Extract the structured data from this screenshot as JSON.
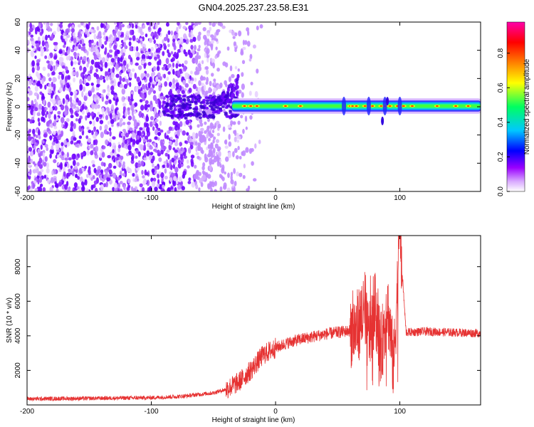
{
  "chart_data": [
    {
      "type": "heatmap",
      "title": "GN04.2025.237.23.58.E31",
      "xlabel": "Height of straight line (km)",
      "ylabel": "Frequency (Hz)",
      "xlim": [
        -200,
        165
      ],
      "ylim": [
        -60,
        60
      ],
      "xticks": [
        {
          "value": -200,
          "label": "-200"
        },
        {
          "value": -100,
          "label": "-100"
        },
        {
          "value": 0,
          "label": "0"
        },
        {
          "value": 100,
          "label": "100"
        }
      ],
      "yticks": [
        {
          "value": -60,
          "label": "-60"
        },
        {
          "value": -40,
          "label": "-40"
        },
        {
          "value": -20,
          "label": "-20"
        },
        {
          "value": 0,
          "label": "0"
        },
        {
          "value": 20,
          "label": "20"
        },
        {
          "value": 40,
          "label": "40"
        },
        {
          "value": 60,
          "label": "60"
        }
      ],
      "colorbar": {
        "label": "Normalized spectral amplitude",
        "range": [
          0,
          0.98
        ],
        "ticks": [
          {
            "value": 0.0,
            "label": "0.0"
          },
          {
            "value": 0.2,
            "label": "0.2"
          },
          {
            "value": 0.4,
            "label": "0.4"
          },
          {
            "value": 0.6,
            "label": "0.6"
          },
          {
            "value": 0.8,
            "label": "0.8"
          }
        ],
        "colormap": [
          "#ffffff",
          "#9a00ff",
          "#0000ff",
          "#00c8ff",
          "#00ff60",
          "#ffff00",
          "#ff8000",
          "#ff0000",
          "#ff00aa"
        ]
      },
      "regions": {
        "noise_end_km": -30,
        "band_start_km": -35,
        "band_center_hz": 0.5,
        "band_half_width_hz": 3,
        "upper_blob_km": [
          -50,
          -30
        ],
        "perturbations_km": [
          55,
          75,
          88,
          100
        ]
      }
    },
    {
      "type": "line",
      "title": "",
      "xlabel": "Height of straight line (km)",
      "ylabel": "SNR (10 * v/v)",
      "xlim": [
        -200,
        165
      ],
      "ylim": [
        0,
        9800
      ],
      "xticks": [
        {
          "value": -200,
          "label": "-200"
        },
        {
          "value": -100,
          "label": "-100"
        },
        {
          "value": 0,
          "label": "0"
        },
        {
          "value": 100,
          "label": "100"
        }
      ],
      "yticks": [
        {
          "value": 2000,
          "label": "2000"
        },
        {
          "value": 4000,
          "label": "4000"
        },
        {
          "value": 6000,
          "label": "6000"
        },
        {
          "value": 8000,
          "label": "8000"
        }
      ],
      "series": [
        {
          "name": "SNR",
          "color": "#e63232",
          "x": [
            -200,
            -150,
            -100,
            -75,
            -50,
            -40,
            -30,
            -20,
            -10,
            0,
            10,
            20,
            40,
            60,
            65,
            70,
            75,
            80,
            85,
            90,
            95,
            100,
            105,
            120,
            140,
            165
          ],
          "y": [
            350,
            380,
            420,
            500,
            700,
            900,
            1300,
            2000,
            2900,
            3300,
            3600,
            3800,
            4100,
            4300,
            4400,
            5200,
            3900,
            5600,
            3200,
            5800,
            2200,
            9800,
            4200,
            4250,
            4200,
            4150
          ]
        }
      ]
    }
  ]
}
